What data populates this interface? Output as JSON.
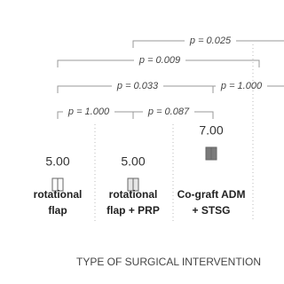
{
  "chart_data": {
    "type": "box",
    "categories": [
      [
        "rotational",
        "flap"
      ],
      [
        "rotational",
        "flap + PRP"
      ],
      [
        "Co-graft ADM",
        "+ STSG"
      ]
    ],
    "values": [
      5,
      5,
      7
    ],
    "value_labels": [
      "5.00",
      "5.00",
      "7.00"
    ],
    "colors": [
      "#ffffff",
      "#e6e6e6",
      "#7a7a7a"
    ],
    "ylim": [
      3,
      15
    ],
    "x_label": "TYPE OF SURGICAL INTERVENTION",
    "annotations": [
      "p = 0.025",
      "p = 0.009",
      "p = 0.033",
      "p = 1.000",
      "p = 1.000",
      "p = 0.087"
    ]
  }
}
